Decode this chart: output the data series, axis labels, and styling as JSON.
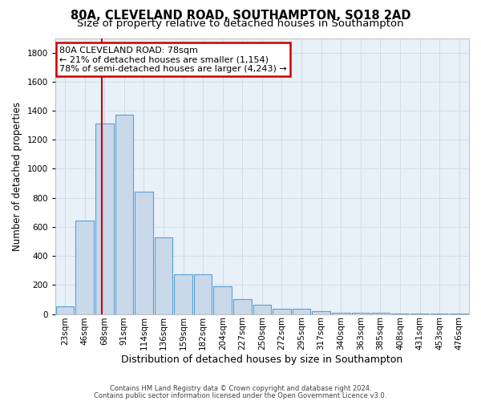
{
  "title": "80A, CLEVELAND ROAD, SOUTHAMPTON, SO18 2AD",
  "subtitle": "Size of property relative to detached houses in Southampton",
  "xlabel": "Distribution of detached houses by size in Southampton",
  "ylabel": "Number of detached properties",
  "footer_line1": "Contains HM Land Registry data © Crown copyright and database right 2024.",
  "footer_line2": "Contains public sector information licensed under the Open Government Licence v3.0.",
  "bar_labels": [
    "23sqm",
    "46sqm",
    "68sqm",
    "91sqm",
    "114sqm",
    "136sqm",
    "159sqm",
    "182sqm",
    "204sqm",
    "227sqm",
    "250sqm",
    "272sqm",
    "295sqm",
    "317sqm",
    "340sqm",
    "363sqm",
    "385sqm",
    "408sqm",
    "431sqm",
    "453sqm",
    "476sqm"
  ],
  "bar_values": [
    55,
    645,
    1310,
    1375,
    845,
    530,
    275,
    275,
    190,
    105,
    65,
    35,
    35,
    20,
    10,
    10,
    10,
    2,
    2,
    2,
    2
  ],
  "bar_color": "#c9d9ea",
  "bar_edge_color": "#5a9fd4",
  "bg_color": "#e8f0f8",
  "grid_color": "#d0dce8",
  "fig_bg_color": "#ffffff",
  "annotation_title": "80A CLEVELAND ROAD: 78sqm",
  "annotation_line1": "← 21% of detached houses are smaller (1,154)",
  "annotation_line2": "78% of semi-detached houses are larger (4,243) →",
  "annotation_box_facecolor": "#ffffff",
  "annotation_box_edgecolor": "#cc0000",
  "red_line_color": "#cc0000",
  "title_fontsize": 10.5,
  "subtitle_fontsize": 9.5,
  "xlabel_fontsize": 9,
  "ylabel_fontsize": 8.5,
  "tick_fontsize": 7.5,
  "annotation_fontsize": 8,
  "footer_fontsize": 6,
  "ylim": [
    0,
    1900
  ],
  "red_line_x": 1.85
}
